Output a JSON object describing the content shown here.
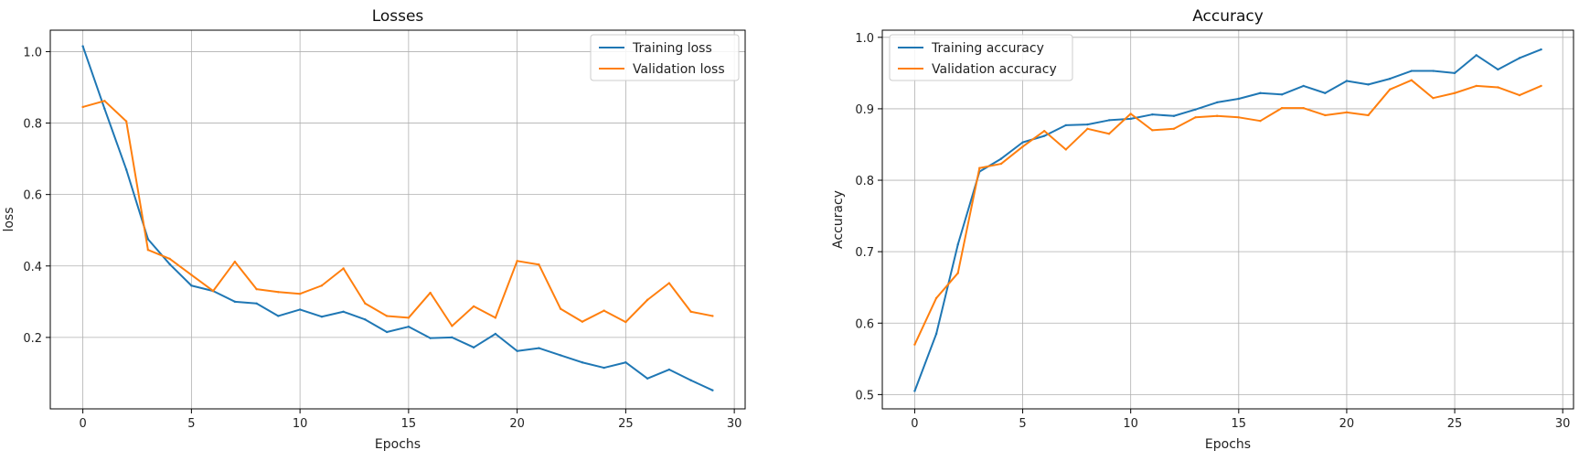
{
  "chart_data": [
    {
      "type": "line",
      "title": "Losses",
      "xlabel": "Epochs",
      "ylabel": "loss",
      "xlim": [
        -1.5,
        30.5
      ],
      "ylim": [
        0.0,
        1.06
      ],
      "xticks": [
        0,
        5,
        10,
        15,
        20,
        25,
        30
      ],
      "yticks": [
        0.2,
        0.4,
        0.6,
        0.8,
        1.0
      ],
      "ytick_labels": [
        "0.2",
        "0.4",
        "0.6",
        "0.8",
        "1.0"
      ],
      "grid": true,
      "legend_position": "top-right",
      "x": [
        0,
        1,
        2,
        3,
        4,
        5,
        6,
        7,
        8,
        9,
        10,
        11,
        12,
        13,
        14,
        15,
        16,
        17,
        18,
        19,
        20,
        21,
        22,
        23,
        24,
        25,
        26,
        27,
        28,
        29
      ],
      "series": [
        {
          "name": "Training loss",
          "color": "#1f77b4",
          "values": [
            1.015,
            0.84,
            0.67,
            0.475,
            0.405,
            0.345,
            0.33,
            0.3,
            0.295,
            0.26,
            0.278,
            0.258,
            0.272,
            0.25,
            0.215,
            0.23,
            0.198,
            0.2,
            0.172,
            0.21,
            0.162,
            0.17,
            0.15,
            0.13,
            0.115,
            0.13,
            0.085,
            0.11,
            0.08,
            0.052
          ]
        },
        {
          "name": "Validation loss",
          "color": "#ff7f0e",
          "values": [
            0.845,
            0.862,
            0.805,
            0.445,
            0.42,
            0.375,
            0.33,
            0.412,
            0.335,
            0.327,
            0.322,
            0.345,
            0.393,
            0.295,
            0.26,
            0.255,
            0.325,
            0.232,
            0.287,
            0.255,
            0.414,
            0.404,
            0.28,
            0.244,
            0.275,
            0.243,
            0.305,
            0.352,
            0.272,
            0.26
          ]
        }
      ]
    },
    {
      "type": "line",
      "title": "Accuracy",
      "xlabel": "Epochs",
      "ylabel": "Accuracy",
      "xlim": [
        -1.5,
        30.5
      ],
      "ylim": [
        0.48,
        1.01
      ],
      "xticks": [
        0,
        5,
        10,
        15,
        20,
        25,
        30
      ],
      "yticks": [
        0.5,
        0.6,
        0.7,
        0.8,
        0.9,
        1.0
      ],
      "ytick_labels": [
        "0.5",
        "0.6",
        "0.7",
        "0.8",
        "0.9",
        "1.0"
      ],
      "grid": true,
      "legend_position": "top-left",
      "x": [
        0,
        1,
        2,
        3,
        4,
        5,
        6,
        7,
        8,
        9,
        10,
        11,
        12,
        13,
        14,
        15,
        16,
        17,
        18,
        19,
        20,
        21,
        22,
        23,
        24,
        25,
        26,
        27,
        28,
        29
      ],
      "series": [
        {
          "name": "Training accuracy",
          "color": "#1f77b4",
          "values": [
            0.505,
            0.585,
            0.71,
            0.812,
            0.83,
            0.853,
            0.862,
            0.877,
            0.878,
            0.884,
            0.886,
            0.892,
            0.89,
            0.899,
            0.909,
            0.914,
            0.922,
            0.92,
            0.932,
            0.922,
            0.939,
            0.934,
            0.942,
            0.953,
            0.953,
            0.95,
            0.975,
            0.955,
            0.971,
            0.983
          ]
        },
        {
          "name": "Validation accuracy",
          "color": "#ff7f0e",
          "values": [
            0.57,
            0.635,
            0.67,
            0.817,
            0.823,
            0.847,
            0.869,
            0.843,
            0.872,
            0.865,
            0.893,
            0.87,
            0.872,
            0.888,
            0.89,
            0.888,
            0.883,
            0.901,
            0.901,
            0.891,
            0.895,
            0.891,
            0.927,
            0.94,
            0.915,
            0.922,
            0.932,
            0.93,
            0.919,
            0.932
          ]
        }
      ]
    }
  ]
}
